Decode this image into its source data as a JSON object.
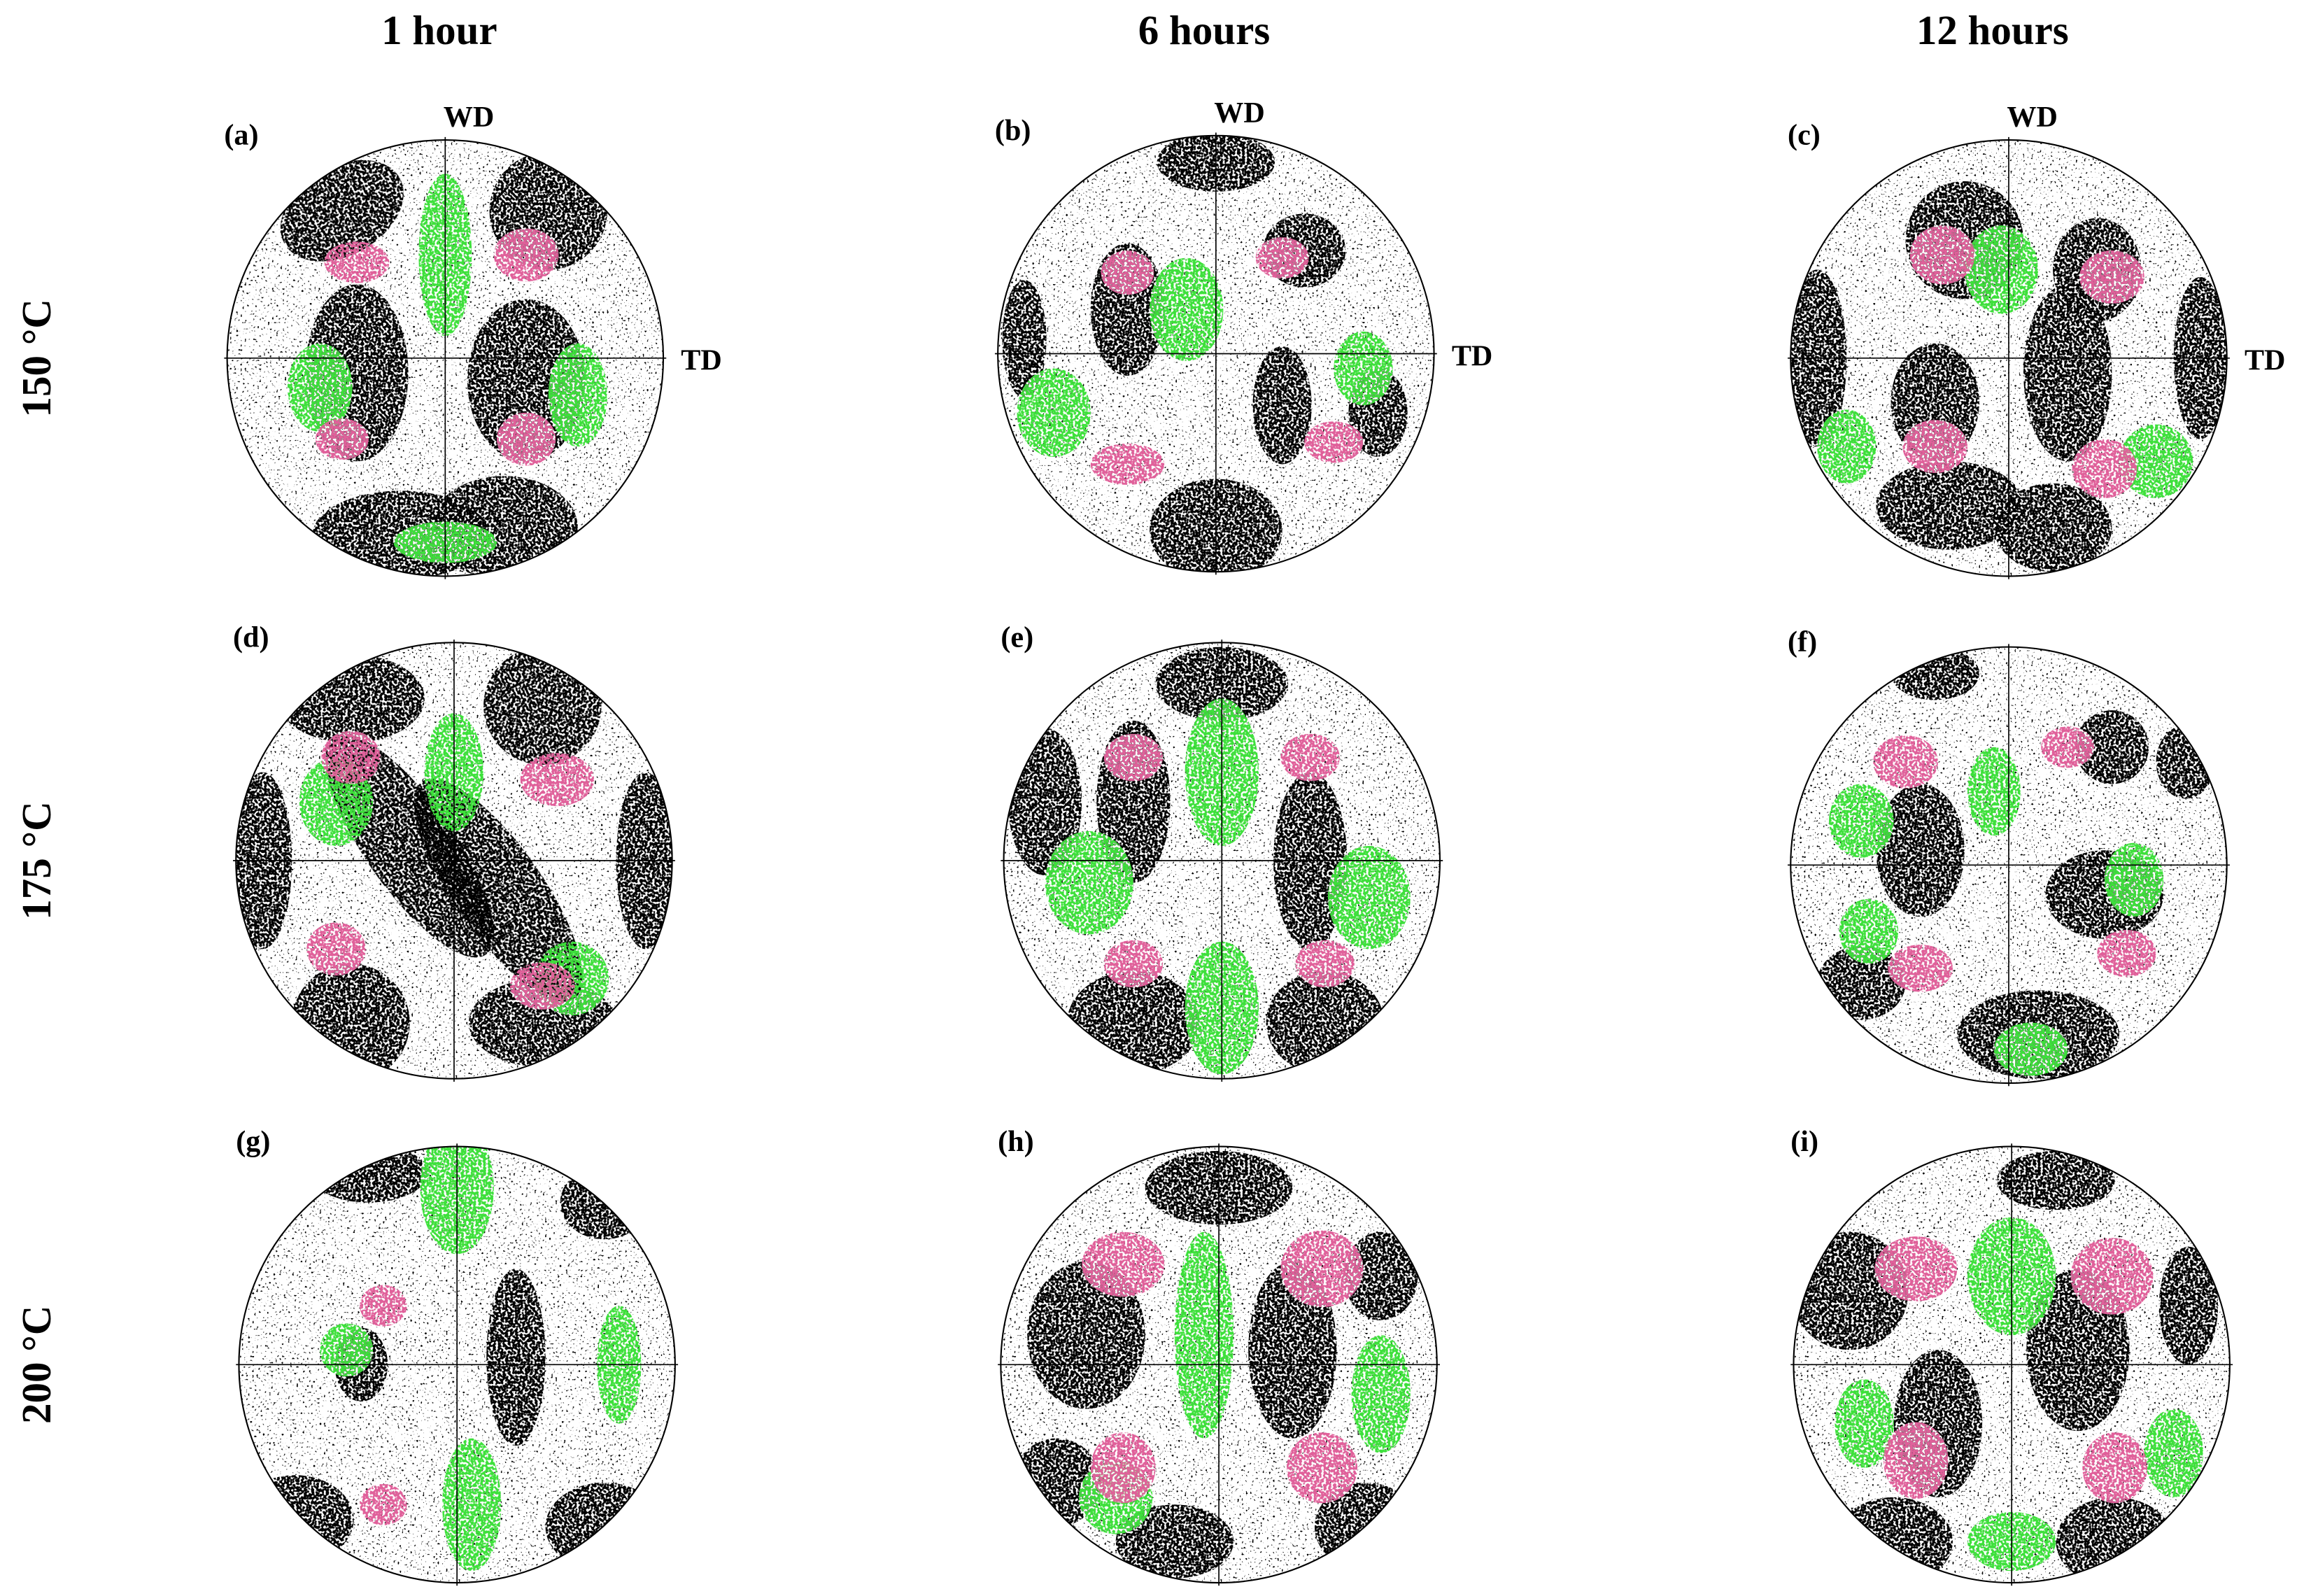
{
  "columns": [
    "1 hour",
    "6 hours",
    "12 hours"
  ],
  "rows": [
    "150 °C",
    "175 °C",
    "200 °C"
  ],
  "panels": [
    {
      "label": "(a)"
    },
    {
      "label": "(b)"
    },
    {
      "label": "(c)"
    },
    {
      "label": "(d)"
    },
    {
      "label": "(e)"
    },
    {
      "label": "(f)"
    },
    {
      "label": "(g)"
    },
    {
      "label": "(h)"
    },
    {
      "label": "(i)"
    }
  ],
  "axes": {
    "wd": "WD",
    "td": "TD"
  }
}
